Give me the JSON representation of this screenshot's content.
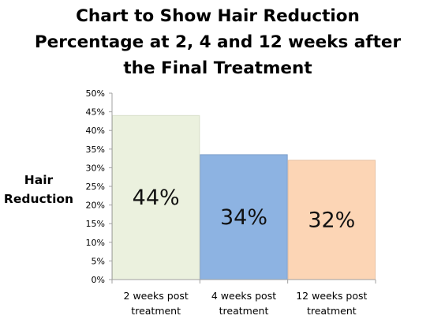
{
  "chart_data": {
    "type": "bar",
    "title_lines": [
      "Chart to Show Hair Reduction",
      "Percentage at 2, 4 and 12 weeks after",
      "the Final Treatment"
    ],
    "ylabel_lines": [
      "Hair",
      "Reduction"
    ],
    "categories": [
      {
        "line1": "2 weeks post",
        "line2": "treatment"
      },
      {
        "line1": "4 weeks post",
        "line2": "treatment"
      },
      {
        "line1": "12 weeks post",
        "line2": "treatment"
      }
    ],
    "values": [
      44,
      33.5,
      32
    ],
    "data_labels": [
      "44%",
      "34%",
      "32%"
    ],
    "bar_colors": [
      "#ebf1de",
      "#8db3e2",
      "#fcd5b5"
    ],
    "bar_stroke_colors": [
      "#d7dfc8",
      "#7f9fcb",
      "#e8c3a4"
    ],
    "yticks": [
      "0%",
      "5%",
      "10%",
      "15%",
      "20%",
      "25%",
      "30%",
      "35%",
      "40%",
      "45%",
      "50%"
    ],
    "ylim": [
      0,
      50
    ],
    "grid": false,
    "legend": "none"
  }
}
